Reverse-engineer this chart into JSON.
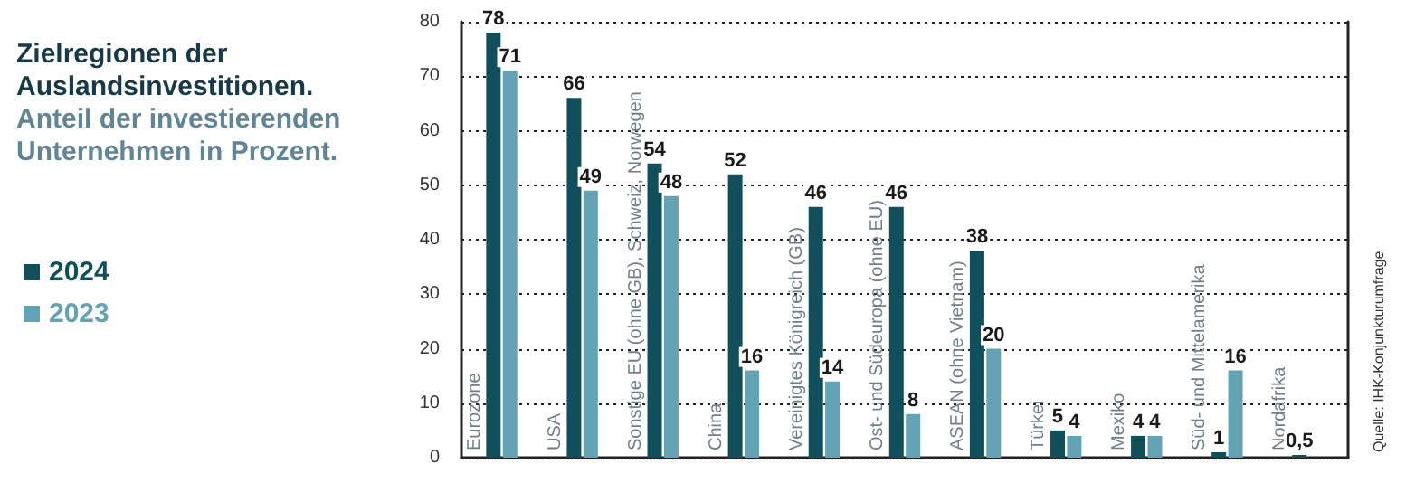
{
  "chart_data": {
    "type": "bar",
    "title": "Zielregionen der Auslandsinvestitionen.",
    "subtitle": "Anteil der investierenden Unternehmen in Prozent.",
    "categories": [
      "Eurozone",
      "USA",
      "Sonstige EU (ohne GB), Schweiz, Norwegen",
      "China",
      "Vereinigtes Königreich (GB)",
      "Ost- und Südeuropa (ohne EU)",
      "ASEAN (ohne Vietnam)",
      "Türkei",
      "Mexiko",
      "Süd- und Mittelamerika",
      "Nordafrika"
    ],
    "series": [
      {
        "name": "2024",
        "color": "#124f5c",
        "values": [
          78,
          66,
          54,
          52,
          46,
          46,
          38,
          5,
          4,
          1,
          0.5
        ],
        "value_labels": [
          "78",
          "66",
          "54",
          "52",
          "46",
          "46",
          "38",
          "5",
          "4",
          "1",
          "0,5"
        ]
      },
      {
        "name": "2023",
        "color": "#63a3b5",
        "values": [
          71,
          49,
          48,
          16,
          14,
          8,
          20,
          4,
          4,
          16,
          null
        ],
        "value_labels": [
          "71",
          "49",
          "48",
          "16",
          "14",
          "8",
          "20",
          "4",
          "4",
          "16",
          null
        ]
      }
    ],
    "ylim": [
      0,
      80
    ],
    "yticks": [
      0,
      10,
      20,
      30,
      40,
      50,
      60,
      70,
      80
    ],
    "grid": "y",
    "legend": "left",
    "annotations": [
      "Quelle: IHK-Konjunkturumfrage"
    ]
  }
}
